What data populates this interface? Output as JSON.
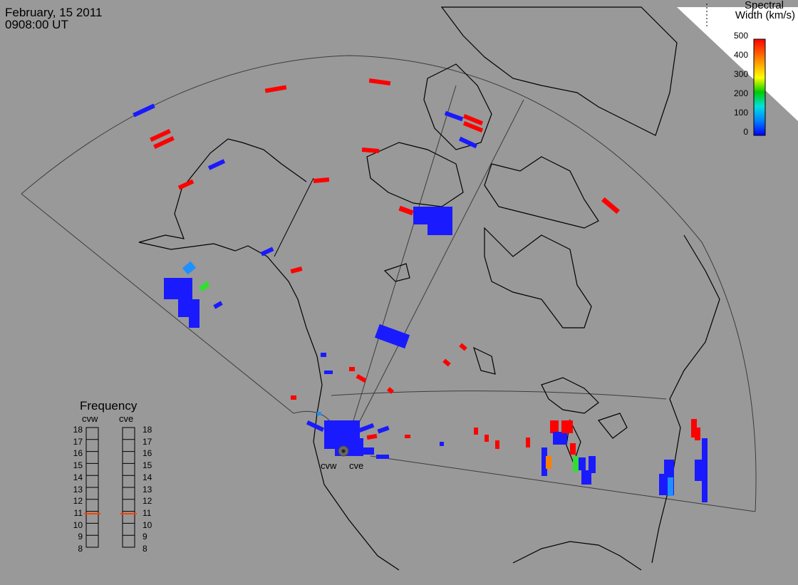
{
  "header": {
    "date": "February, 15 2011",
    "time": "0908:00 UT"
  },
  "colorbar": {
    "title_line1": "Spectral",
    "title_line2": "Width (km/s)",
    "ticks": [
      "500",
      "400",
      "300",
      "200",
      "100",
      "0"
    ],
    "colors": [
      "#ff0000",
      "#ff8000",
      "#ffff00",
      "#00cc00",
      "#00e0e0",
      "#0080ff",
      "#0000ff"
    ]
  },
  "frequency_panel": {
    "title": "Frequency",
    "radars": [
      {
        "name": "cvw",
        "value": 10.8
      },
      {
        "name": "cve",
        "value": 10.8
      }
    ],
    "ticks": [
      "18",
      "17",
      "16",
      "15",
      "14",
      "13",
      "12",
      "11",
      "10",
      "9",
      "8"
    ],
    "marker_color": "#ff4000"
  },
  "radar_sites": [
    {
      "label": "cvw"
    },
    {
      "label": "cve"
    }
  ],
  "field_of_view": {
    "color": "#3c3c3c"
  }
}
